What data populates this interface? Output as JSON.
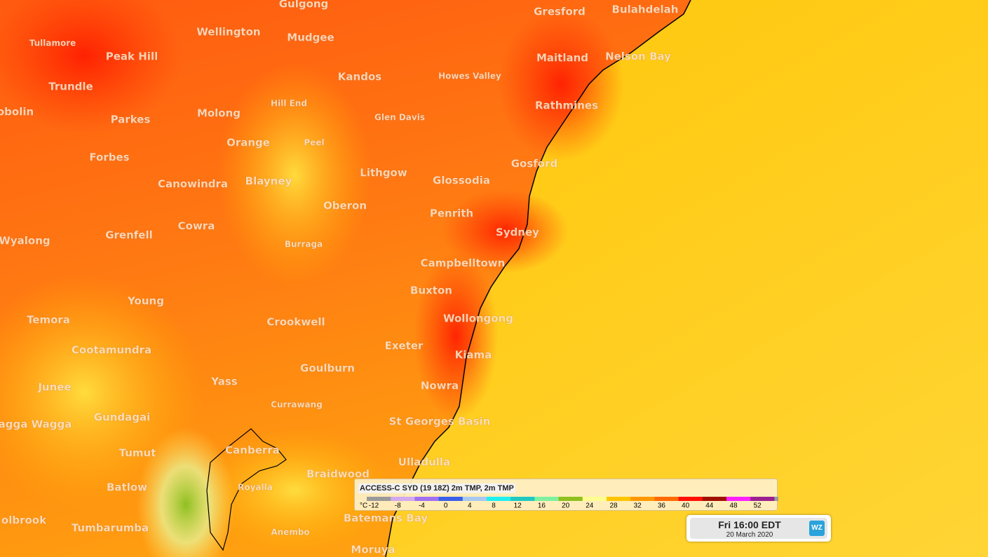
{
  "places": [
    "Gulgong",
    "Gresford",
    "Bulahdelah",
    "Tullamore",
    "Peak Hill",
    "Wellington",
    "Mudgee",
    "Maitland",
    "Nelson Bay",
    "Trundle",
    "Kandos",
    "Howes Valley",
    "obolin",
    "Hill End",
    "Rathmines",
    "Parkes",
    "Molong",
    "Glen Davis",
    "Orange",
    "Peel",
    "Forbes",
    "Gosford",
    "Lithgow",
    "Glossodia",
    "Canowindra",
    "Blayney",
    "Oberon",
    "Penrith",
    "Sydney",
    "Wyalong",
    "Grenfell",
    "Cowra",
    "Burraga",
    "Campbelltown",
    "Buxton",
    "Young",
    "Temora",
    "Crookwell",
    "Wollongong",
    "Cootamundra",
    "Exeter",
    "Kiama",
    "Goulburn",
    "Junee",
    "Yass",
    "Nowra",
    "Currawang",
    "agga Wagga",
    "Gundagai",
    "St Georges Basin",
    "Tumut",
    "Canberra",
    "Ulladulla",
    "Braidwood",
    "Batlow",
    "Royalla",
    "olbrook",
    "Tumbarumba",
    "Batemans Bay",
    "Anembo",
    "Moruya"
  ],
  "legend": {
    "title": "ACCESS-C SYD (19 18Z) 2m TMP, 2m TMP",
    "unit": "°C",
    "ticks": [
      -12,
      -8,
      -4,
      0,
      4,
      8,
      12,
      16,
      20,
      24,
      28,
      32,
      36,
      40,
      44,
      48,
      52
    ]
  },
  "timebox": {
    "time": "Fri 16:00 EDT",
    "date": "20 March 2020",
    "logo": "WZ"
  }
}
